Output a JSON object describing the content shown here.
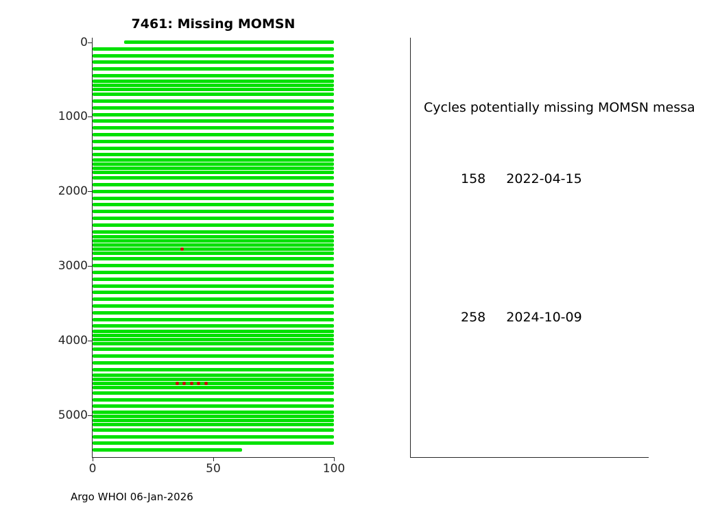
{
  "title": "7461: Missing MOMSN",
  "footer": "Argo WHOI 06-Jan-2026",
  "panel": {
    "header": "Cycles potentially missing MOMSN messa",
    "entries": [
      {
        "cycle": "158",
        "date": "2022-04-15"
      },
      {
        "cycle": "258",
        "date": "2024-10-09"
      }
    ]
  },
  "colors": {
    "received_marker": "#00e000",
    "missing_marker": "#d40000",
    "axis": "#262626",
    "background": "#ffffff"
  },
  "chart_data": {
    "type": "scatter",
    "title": "7461: Missing MOMSN",
    "xlabel": "",
    "ylabel": "",
    "xlim": [
      0,
      100
    ],
    "ylim_display": [
      -60,
      5560
    ],
    "y_axis_inverted": true,
    "x_ticks": [
      0,
      50,
      100
    ],
    "y_ticks": [
      0,
      1000,
      2000,
      3000,
      4000,
      5000
    ],
    "grid": false,
    "legend": "none",
    "marker_color": "#00e000",
    "missing_color": "#d40000",
    "stripes": [
      {
        "y": 0,
        "x0": 13,
        "x1": 100
      },
      {
        "y": 90
      },
      {
        "y": 180
      },
      {
        "y": 270
      },
      {
        "y": 360
      },
      {
        "y": 450
      },
      {
        "y": 520
      },
      {
        "y": 575
      },
      {
        "y": 630
      },
      {
        "y": 700
      },
      {
        "y": 790
      },
      {
        "y": 880
      },
      {
        "y": 970
      },
      {
        "y": 1060
      },
      {
        "y": 1150
      },
      {
        "y": 1240
      },
      {
        "y": 1330
      },
      {
        "y": 1420
      },
      {
        "y": 1510
      },
      {
        "y": 1580
      },
      {
        "y": 1635
      },
      {
        "y": 1690
      },
      {
        "y": 1745
      },
      {
        "y": 1820
      },
      {
        "y": 1910
      },
      {
        "y": 2000
      },
      {
        "y": 2090
      },
      {
        "y": 2180
      },
      {
        "y": 2270
      },
      {
        "y": 2360
      },
      {
        "y": 2450
      },
      {
        "y": 2540
      },
      {
        "y": 2610
      },
      {
        "y": 2665
      },
      {
        "y": 2720
      },
      {
        "y": 2775
      },
      {
        "y": 2830
      },
      {
        "y": 2905
      },
      {
        "y": 2995
      },
      {
        "y": 3085
      },
      {
        "y": 3175
      },
      {
        "y": 3265
      },
      {
        "y": 3355
      },
      {
        "y": 3445
      },
      {
        "y": 3535
      },
      {
        "y": 3625
      },
      {
        "y": 3715
      },
      {
        "y": 3805
      },
      {
        "y": 3875
      },
      {
        "y": 3930
      },
      {
        "y": 3985
      },
      {
        "y": 4040
      },
      {
        "y": 4115
      },
      {
        "y": 4205
      },
      {
        "y": 4295
      },
      {
        "y": 4385
      },
      {
        "y": 4460
      },
      {
        "y": 4515
      },
      {
        "y": 4570
      },
      {
        "y": 4625
      },
      {
        "y": 4700
      },
      {
        "y": 4790
      },
      {
        "y": 4880
      },
      {
        "y": 4955
      },
      {
        "y": 5010
      },
      {
        "y": 5065
      },
      {
        "y": 5120
      },
      {
        "y": 5195
      },
      {
        "y": 5285
      },
      {
        "y": 5375
      },
      {
        "y": 5465,
        "x0": 0,
        "x1": 62
      }
    ],
    "red_points": [
      {
        "x": 37,
        "y": 2775
      },
      {
        "x": 35,
        "y": 4570
      },
      {
        "x": 38,
        "y": 4570
      },
      {
        "x": 41,
        "y": 4570
      },
      {
        "x": 44,
        "y": 4570
      },
      {
        "x": 47,
        "y": 4570
      }
    ]
  }
}
